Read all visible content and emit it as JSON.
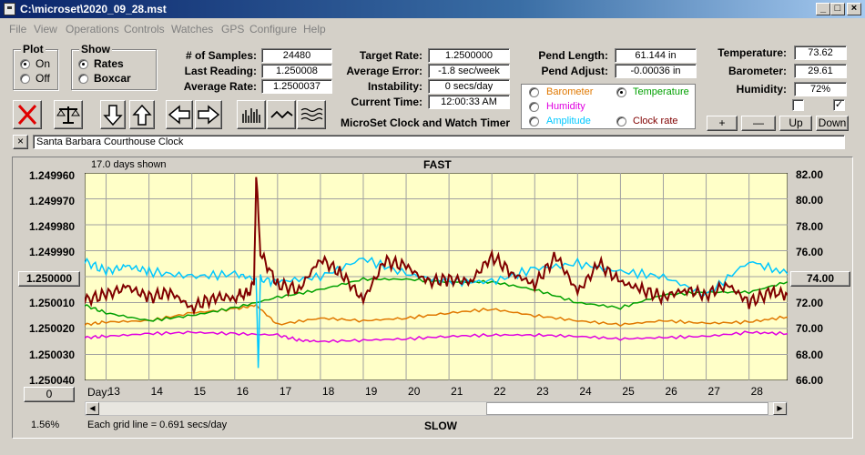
{
  "window": {
    "title": "C:\\microset\\2020_09_28.mst"
  },
  "menu": [
    "File",
    "View",
    "Operations",
    "Controls",
    "Watches",
    "GPS",
    "Configure",
    "Help"
  ],
  "plot_group": {
    "title": "Plot",
    "on": "On",
    "off": "Off",
    "selected": "On"
  },
  "show_group": {
    "title": "Show",
    "rates": "Rates",
    "boxcar": "Boxcar",
    "selected": "Rates"
  },
  "stats": {
    "samples_label": "# of Samples:",
    "samples": "24480",
    "last_reading_label": "Last Reading:",
    "last_reading": "1.250008",
    "avg_rate_label": "Average Rate:",
    "avg_rate": "1.2500037",
    "target_rate_label": "Target Rate:",
    "target_rate": "1.2500000",
    "avg_error_label": "Average Error:",
    "avg_error": "-1.8 sec/week",
    "instability_label": "Instability:",
    "instability": "0 secs/day",
    "current_time_label": "Current Time:",
    "current_time": "12:00:33 AM",
    "pend_length_label": "Pend Length:",
    "pend_length": "61.144 in",
    "pend_adjust_label": "Pend Adjust:",
    "pend_adjust": "-0.00036 in",
    "temperature_label": "Temperature:",
    "temperature": "73.62",
    "barometer_label": "Barometer:",
    "barometer": "29.61",
    "humidity_label": "Humidity:",
    "humidity": "72%"
  },
  "app_heading": "MicroSet Clock and Watch Timer",
  "sensor_select": {
    "barometer": "Barometer",
    "temperature": "Temperature",
    "humidity": "Humidity",
    "amplitude": "Amplitude",
    "clock_rate": "Clock rate",
    "selected": "Temperature",
    "colors": {
      "barometer": "#e07800",
      "temperature": "#00a000",
      "humidity": "#e000e0",
      "amplitude": "#00c8ff",
      "clock_rate": "#800000"
    }
  },
  "scale_buttons": {
    "plus": "+",
    "minus": "—",
    "up": "Up",
    "down": "Down"
  },
  "clock_name": "Santa Barbara Courthouse Clock",
  "graph_panel": {
    "days_shown": "17.0 days shown",
    "fast": "FAST",
    "slow": "SLOW",
    "grid_note": "Each grid line = 0.691 secs/day",
    "day_label": "Day:",
    "center_button": "1.250000",
    "right_button": "74.00",
    "left_button": "0",
    "percent": "1.56%"
  },
  "chart_data": {
    "type": "line",
    "x_label": "Day",
    "x_ticks": [
      13,
      14,
      15,
      16,
      17,
      18,
      19,
      20,
      21,
      22,
      23,
      24,
      25,
      26,
      27,
      28
    ],
    "xlim": [
      12.5,
      28.9
    ],
    "left_axis": {
      "ticks": [
        "1.249960",
        "1.249970",
        "1.249980",
        "1.249990",
        "1.250000",
        "1.250010",
        "1.250020",
        "1.250030",
        "1.250040"
      ],
      "range": [
        1.24996,
        1.25004
      ],
      "inverted": true
    },
    "right_axis": {
      "ticks": [
        "82.00",
        "80.00",
        "78.00",
        "76.00",
        "74.00",
        "72.00",
        "70.00",
        "68.00",
        "66.00"
      ],
      "range": [
        66,
        82
      ]
    },
    "grid": true,
    "background": "#ffffc8",
    "series": [
      {
        "name": "Barometer",
        "color": "#e07800",
        "axis": "right",
        "x": [
          12.5,
          13,
          14,
          15,
          16,
          16.5,
          17,
          18,
          19,
          20,
          21,
          22,
          23,
          24,
          25,
          26,
          27,
          28,
          28.9
        ],
        "y": [
          70.3,
          70.5,
          70.6,
          71.2,
          71.5,
          71.8,
          70.3,
          70.8,
          70.6,
          70.8,
          71.2,
          71.5,
          71.0,
          70.6,
          70.3,
          70.6,
          70.4,
          70.5,
          70.9
        ]
      },
      {
        "name": "Humidity",
        "color": "#e000e0",
        "axis": "right",
        "x": [
          12.5,
          13,
          14,
          15,
          16,
          17,
          17.5,
          18,
          19,
          20,
          21,
          22,
          23,
          24,
          25,
          26,
          27,
          28,
          28.9
        ],
        "y": [
          69.3,
          69.4,
          69.6,
          69.7,
          69.6,
          69.5,
          69.1,
          69.0,
          69.1,
          69.2,
          69.4,
          69.5,
          69.5,
          69.4,
          69.2,
          69.3,
          69.4,
          69.7,
          69.6
        ]
      },
      {
        "name": "Temperature",
        "color": "#00a000",
        "axis": "right",
        "x": [
          12.5,
          13,
          14,
          15,
          16,
          17,
          18,
          19,
          20,
          21,
          22,
          23,
          24,
          25,
          26,
          27,
          28,
          28.9
        ],
        "y": [
          71.8,
          71.2,
          70.6,
          71.0,
          71.6,
          72.4,
          73.0,
          73.8,
          73.8,
          73.6,
          73.6,
          73.0,
          72.0,
          71.6,
          72.6,
          72.8,
          72.8,
          73.6
        ]
      },
      {
        "name": "Amplitude",
        "color": "#00c8ff",
        "axis": "right",
        "x": [
          12.5,
          13,
          13.5,
          14,
          15,
          16,
          16.5,
          16.55,
          16.6,
          17,
          18,
          19,
          20,
          21,
          22,
          23,
          24,
          25,
          26,
          27,
          28,
          28.9
        ],
        "y": [
          75.2,
          74.4,
          74.8,
          74.4,
          74.0,
          74.2,
          73.8,
          67.2,
          73.8,
          73.6,
          74.0,
          75.4,
          74.2,
          73.6,
          73.6,
          74.6,
          75.0,
          74.4,
          74.0,
          72.6,
          75.2,
          74.2
        ]
      },
      {
        "name": "Clock rate",
        "color": "#800000",
        "axis": "right",
        "x": [
          12.5,
          13,
          13.5,
          14,
          14.5,
          15,
          15.5,
          16,
          16.3,
          16.45,
          16.5,
          16.6,
          17,
          17.5,
          18,
          18.5,
          19,
          19.5,
          20,
          20.5,
          21,
          21.5,
          22,
          22.5,
          23,
          23.5,
          24,
          24.5,
          25,
          25.5,
          26,
          26.5,
          27,
          27.5,
          28,
          28.5,
          28.9
        ],
        "y": [
          72.2,
          72.6,
          73.2,
          72.4,
          72.8,
          71.6,
          72.4,
          72.4,
          72.8,
          73.4,
          81.8,
          75.8,
          73.4,
          73.0,
          75.4,
          74.2,
          72.2,
          75.2,
          74.8,
          73.6,
          73.8,
          73.6,
          75.6,
          74.2,
          73.4,
          75.6,
          72.8,
          75.0,
          73.6,
          73.0,
          72.4,
          73.0,
          72.6,
          73.4,
          72.0,
          72.8,
          72.6
        ]
      }
    ]
  }
}
